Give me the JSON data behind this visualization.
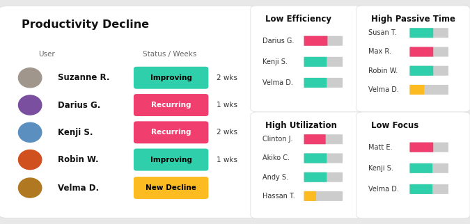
{
  "title": "Productivity Decline",
  "col_headers": [
    "User",
    "Status / Weeks"
  ],
  "users": [
    {
      "name": "Suzanne R.",
      "status": "Improving",
      "weeks": "2 wks",
      "status_color": "#2ECFAA",
      "text_color": "#000000"
    },
    {
      "name": "Darius G.",
      "status": "Recurring",
      "weeks": "1 wks",
      "status_color": "#F03E6E",
      "text_color": "#ffffff"
    },
    {
      "name": "Kenji S.",
      "status": "Recurring",
      "weeks": "2 wks",
      "status_color": "#F03E6E",
      "text_color": "#ffffff"
    },
    {
      "name": "Robin W.",
      "status": "Improving",
      "weeks": "1 wks",
      "status_color": "#2ECFAA",
      "text_color": "#000000"
    },
    {
      "name": "Velma D.",
      "status": "New Decline",
      "weeks": "",
      "status_color": "#FBBB21",
      "text_color": "#000000"
    }
  ],
  "avatar_colors": [
    "#a0968c",
    "#7a4fa0",
    "#5a8fc0",
    "#d05020",
    "#b07820"
  ],
  "panels": [
    {
      "title": "Low Efficiency",
      "entries": [
        {
          "name": "Darius G.",
          "bar_color": "#F03E6E",
          "bar_fill": 0.6
        },
        {
          "name": "Kenji S.",
          "bar_color": "#2ECFAA",
          "bar_fill": 0.58
        },
        {
          "name": "Velma D.",
          "bar_color": "#2ECFAA",
          "bar_fill": 0.58
        }
      ]
    },
    {
      "title": "High Passive Time",
      "entries": [
        {
          "name": "Susan T.",
          "bar_color": "#2ECFAA",
          "bar_fill": 0.6
        },
        {
          "name": "Max R.",
          "bar_color": "#F03E6E",
          "bar_fill": 0.6
        },
        {
          "name": "Robin W.",
          "bar_color": "#2ECFAA",
          "bar_fill": 0.6
        },
        {
          "name": "Velma D.",
          "bar_color": "#FBBB21",
          "bar_fill": 0.36
        }
      ]
    },
    {
      "title": "High Utilization",
      "entries": [
        {
          "name": "Clinton J.",
          "bar_color": "#F03E6E",
          "bar_fill": 0.55
        },
        {
          "name": "Akiko C.",
          "bar_color": "#2ECFAA",
          "bar_fill": 0.58
        },
        {
          "name": "Andy S.",
          "bar_color": "#2ECFAA",
          "bar_fill": 0.58
        },
        {
          "name": "Hassan T.",
          "bar_color": "#FBBB21",
          "bar_fill": 0.3
        }
      ]
    },
    {
      "title": "Low Focus",
      "entries": [
        {
          "name": "Matt E.",
          "bar_color": "#F03E6E",
          "bar_fill": 0.6
        },
        {
          "name": "Kenji S.",
          "bar_color": "#2ECFAA",
          "bar_fill": 0.58
        },
        {
          "name": "Velma D.",
          "bar_color": "#2ECFAA",
          "bar_fill": 0.58
        }
      ]
    }
  ],
  "bg_color": "#e8e8e8",
  "card_color": "#ffffff",
  "title_fontsize": 11.5,
  "header_fontsize": 7.5,
  "name_fontsize": 8.5,
  "panel_title_fontsize": 8.5,
  "entry_fontsize": 7.0
}
